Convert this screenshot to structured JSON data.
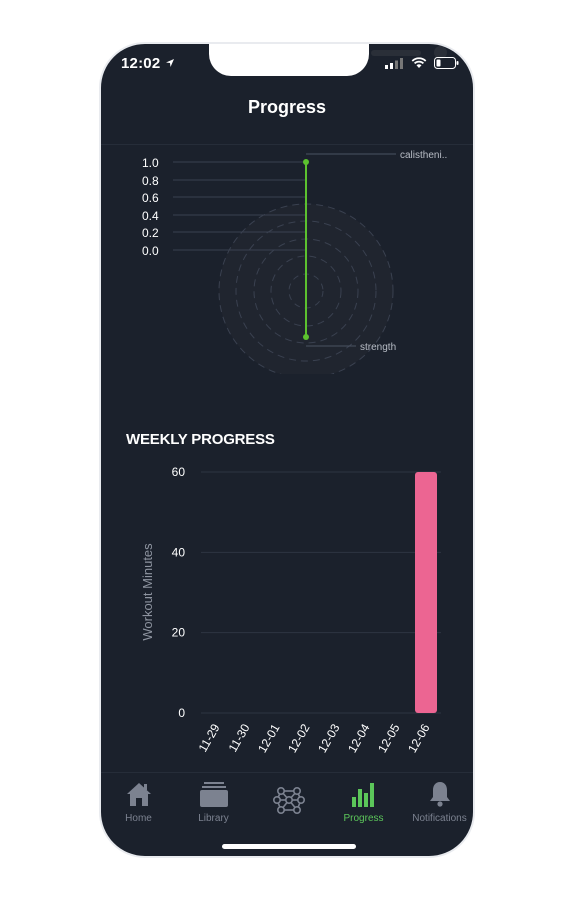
{
  "status_bar": {
    "time": "12:02"
  },
  "header": {
    "title": "Progress"
  },
  "radar": {
    "scale_labels": [
      "1.0",
      "0.8",
      "0.6",
      "0.4",
      "0.2",
      "0.0"
    ],
    "axis_labels": [
      "calistheni..",
      "strength"
    ],
    "colors": {
      "series": "#5cc12f",
      "grid": "#3a4150"
    }
  },
  "weekly": {
    "title": "WEEKLY PROGRESS"
  },
  "chart_data": {
    "type": "bar",
    "categories": [
      "11-29",
      "11-30",
      "12-01",
      "12-02",
      "12-03",
      "12-04",
      "12-05",
      "12-06"
    ],
    "values": [
      0,
      0,
      0,
      0,
      0,
      0,
      0,
      60
    ],
    "ylabel": "Workout Minutes",
    "xlabel": "",
    "ylim": [
      0,
      60
    ],
    "yticks": [
      0,
      20,
      40,
      60
    ],
    "bar_color": "#ec6592",
    "grid": true
  },
  "tabbar": {
    "items": [
      {
        "label": "Home",
        "icon": "home-icon",
        "active": false
      },
      {
        "label": "Library",
        "icon": "library-icon",
        "active": false
      },
      {
        "label": "",
        "icon": "network-icon",
        "active": false
      },
      {
        "label": "Progress",
        "icon": "bar-chart-icon",
        "active": true
      },
      {
        "label": "Notifications",
        "icon": "bell-icon",
        "active": false
      }
    ],
    "colors": {
      "active": "#5cc65a",
      "inactive": "#7c8290"
    }
  }
}
